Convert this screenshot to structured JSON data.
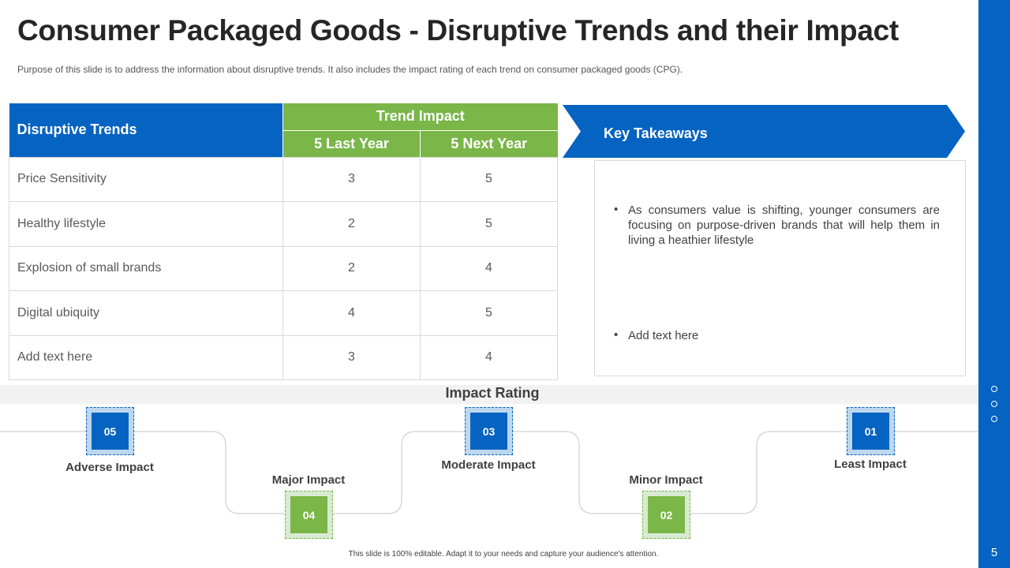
{
  "title": "Consumer Packaged Goods - Disruptive Trends and their Impact",
  "subtitle": "Purpose of this slide is to address the information about disruptive trends. It also includes the impact rating of each trend on consumer packaged goods (CPG).",
  "table": {
    "col_trends": "Disruptive Trends",
    "col_impact": "Trend Impact",
    "col_last": "5 Last Year",
    "col_next": "5 Next Year",
    "rows": [
      {
        "name": "Price Sensitivity",
        "last": "3",
        "next": "5"
      },
      {
        "name": "Healthy lifestyle",
        "last": "2",
        "next": "5"
      },
      {
        "name": "Explosion of small brands",
        "last": "2",
        "next": "4"
      },
      {
        "name": "Digital ubiquity",
        "last": "4",
        "next": "5"
      },
      {
        "name": "Add text here",
        "last": "3",
        "next": "4"
      }
    ]
  },
  "takeaways": {
    "title": "Key Takeaways",
    "bullet_char": "•",
    "items": [
      "As consumers value is shifting, younger consumers are focusing on purpose-driven brands that will help them in living a heathier lifestyle",
      "Add text here"
    ]
  },
  "impact_rating": {
    "title": "Impact Rating",
    "levels": [
      {
        "num": "05",
        "label": "Adverse Impact",
        "color": "blue"
      },
      {
        "num": "04",
        "label": "Major Impact",
        "color": "green"
      },
      {
        "num": "03",
        "label": "Moderate Impact",
        "color": "blue"
      },
      {
        "num": "02",
        "label": "Minor Impact",
        "color": "green"
      },
      {
        "num": "01",
        "label": "Least Impact",
        "color": "blue"
      }
    ]
  },
  "footer": "This slide is 100% editable. Adapt it to your needs and capture your audience's attention.",
  "page_number": "5",
  "colors": {
    "blue": "#0563c1",
    "green": "#7ab648"
  }
}
